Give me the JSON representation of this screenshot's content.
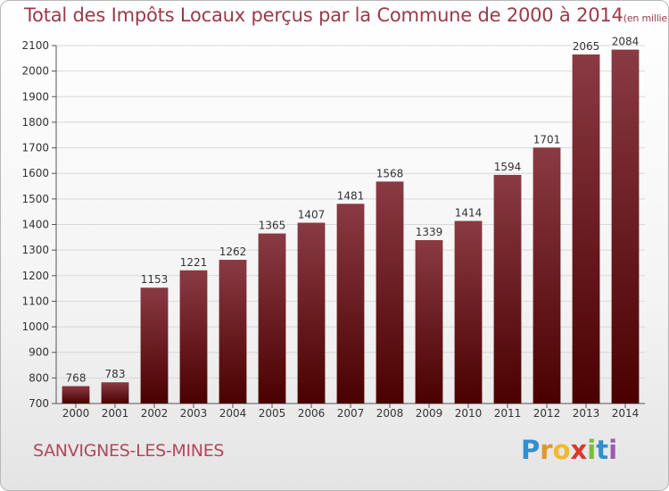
{
  "header": {
    "title": "Total des Impôts Locaux perçus par la Commune de 2000 à 2014",
    "unit": "(en milliers d'€)"
  },
  "footer": {
    "commune": "SANVIGNES-LES-MINES",
    "brand_letters": [
      "P",
      "r",
      "o",
      "x",
      "i",
      "t",
      "i"
    ]
  },
  "colors": {
    "bar_top": "#8a3a43",
    "bar_bottom": "#4a0000",
    "title": "#9b3a48",
    "grid": "#d8d8d8"
  },
  "chart_data": {
    "type": "bar",
    "title": "Total des Impôts Locaux perçus par la Commune de 2000 à 2014",
    "xlabel": "",
    "ylabel": "(en milliers d'€)",
    "categories": [
      "2000",
      "2001",
      "2002",
      "2003",
      "2004",
      "2005",
      "2006",
      "2007",
      "2008",
      "2009",
      "2010",
      "2011",
      "2012",
      "2013",
      "2014"
    ],
    "values": [
      768,
      783,
      1153,
      1221,
      1262,
      1365,
      1407,
      1481,
      1568,
      1339,
      1414,
      1594,
      1701,
      2065,
      2084
    ],
    "ylim": [
      700,
      2100
    ],
    "yticks": [
      700,
      800,
      900,
      1000,
      1100,
      1200,
      1300,
      1400,
      1500,
      1600,
      1700,
      1800,
      1900,
      2000,
      2100
    ],
    "grid": true
  }
}
